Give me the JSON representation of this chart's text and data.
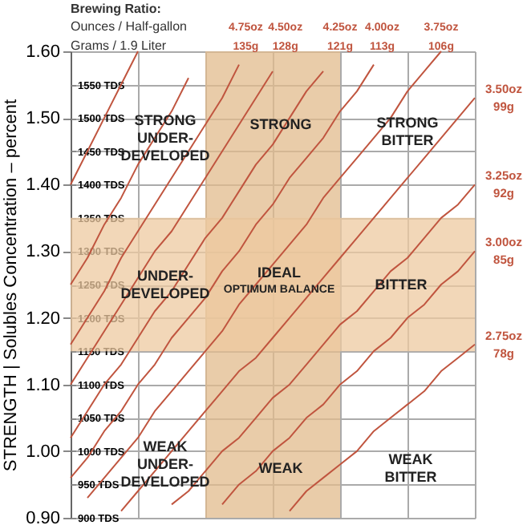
{
  "chart_data": {
    "type": "line",
    "ylabel": "STRENGTH | Solubles Concentration – percent",
    "annotations": [
      "Brewing Ratio:",
      "Ounces / Half-gallon",
      "Grams / 1.9 Liter",
      "STRONG UNDER-DEVELOPED",
      "STRONG",
      "STRONG BITTER",
      "UNDER-DEVELOPED",
      "IDEAL",
      "OPTIMUM BALANCE",
      "BITTER",
      "WEAK UNDER-DEVELOPED",
      "WEAK",
      "WEAK BITTER"
    ],
    "categories": [
      null,
      null,
      null,
      null,
      null,
      null,
      null,
      null,
      null,
      null,
      null,
      null,
      null,
      null,
      null,
      null,
      null,
      null,
      null,
      null,
      null,
      null,
      null,
      null,
      null
    ],
    "series": [
      {
        "color": "#c0553f",
        "values": [
          1.4,
          1.45,
          1.5,
          1.55,
          1.6,
          null,
          null,
          null,
          null,
          null,
          null,
          null,
          null,
          null,
          null,
          null,
          null,
          null,
          null,
          null,
          null,
          null,
          null,
          null,
          null
        ]
      },
      {
        "color": "#c0553f",
        "values": [
          1.25,
          1.29,
          1.34,
          1.38,
          1.43,
          1.47,
          1.51,
          1.56,
          null,
          null,
          null,
          null,
          null,
          null,
          null,
          null,
          null,
          null,
          null,
          null,
          null,
          null,
          null,
          null,
          null
        ]
      },
      {
        "name": "4.75oz 135g",
        "color": "#c0553f",
        "values": [
          1.16,
          1.2,
          1.24,
          1.29,
          1.33,
          1.37,
          1.41,
          1.45,
          1.49,
          1.53,
          1.58,
          null,
          null,
          null,
          null,
          null,
          null,
          null,
          null,
          null,
          null,
          null,
          null,
          null,
          null
        ]
      },
      {
        "name": "4.50oz 128g",
        "color": "#c0553f",
        "values": [
          1.1,
          1.14,
          1.18,
          1.22,
          1.26,
          1.3,
          1.33,
          1.37,
          1.41,
          1.45,
          1.49,
          1.53,
          1.57,
          null,
          null,
          null,
          null,
          null,
          null,
          null,
          null,
          null,
          null,
          null,
          null
        ]
      },
      {
        "name": "4.25oz 121g",
        "color": "#c0553f",
        "values": [
          1.02,
          1.06,
          1.1,
          1.13,
          1.17,
          1.21,
          1.24,
          1.28,
          1.32,
          1.35,
          1.39,
          1.43,
          1.46,
          1.5,
          1.54,
          1.57,
          null,
          null,
          null,
          null,
          null,
          null,
          null,
          null,
          null
        ]
      },
      {
        "name": "4.00oz 113g",
        "color": "#c0553f",
        "values": [
          0.96,
          0.99,
          1.03,
          1.06,
          1.1,
          1.13,
          1.17,
          1.2,
          1.23,
          1.27,
          1.3,
          1.34,
          1.37,
          1.41,
          1.44,
          1.47,
          1.51,
          1.54,
          1.58,
          null,
          null,
          null,
          null,
          null,
          null
        ]
      },
      {
        "name": "3.75oz 106g",
        "color": "#c0553f",
        "values": [
          null,
          0.93,
          0.96,
          0.99,
          1.02,
          1.06,
          1.09,
          1.12,
          1.15,
          1.18,
          1.22,
          1.25,
          1.28,
          1.31,
          1.34,
          1.38,
          1.41,
          1.44,
          1.47,
          1.5,
          1.54,
          1.57,
          1.6,
          null,
          null
        ]
      },
      {
        "name": "3.50oz 99g",
        "color": "#c0553f",
        "values": [
          null,
          null,
          null,
          0.91,
          0.94,
          0.97,
          1.0,
          1.03,
          1.06,
          1.09,
          1.12,
          1.14,
          1.17,
          1.2,
          1.23,
          1.26,
          1.29,
          1.32,
          1.35,
          1.38,
          1.41,
          1.44,
          1.47,
          1.5,
          1.53
        ]
      },
      {
        "name": "3.25oz 92g",
        "color": "#c0553f",
        "values": [
          null,
          null,
          null,
          null,
          null,
          null,
          0.92,
          0.94,
          0.97,
          1.0,
          1.02,
          1.05,
          1.08,
          1.1,
          1.13,
          1.16,
          1.19,
          1.21,
          1.24,
          1.27,
          1.29,
          1.32,
          1.35,
          1.37,
          1.4
        ]
      },
      {
        "name": "3.00oz 85g",
        "color": "#c0553f",
        "values": [
          null,
          null,
          null,
          null,
          null,
          null,
          null,
          null,
          null,
          0.92,
          0.95,
          0.97,
          1.0,
          1.02,
          1.05,
          1.07,
          1.1,
          1.12,
          1.15,
          1.17,
          1.2,
          1.22,
          1.25,
          1.27,
          1.3
        ]
      },
      {
        "name": "2.75oz 78g",
        "color": "#c0553f",
        "values": [
          null,
          null,
          null,
          null,
          null,
          null,
          null,
          null,
          null,
          null,
          null,
          null,
          null,
          0.91,
          0.94,
          0.96,
          0.98,
          1.0,
          1.03,
          1.05,
          1.07,
          1.09,
          1.12,
          1.14,
          1.16
        ]
      }
    ],
    "ylim": [
      0.9,
      1.6
    ],
    "yticks": [
      {
        "value": 0.9,
        "label": "0.90"
      },
      {
        "value": 1.0,
        "label": "1.00"
      },
      {
        "value": 1.1,
        "label": "1.10"
      },
      {
        "value": 1.2,
        "label": "1.20"
      },
      {
        "value": 1.3,
        "label": "1.30"
      },
      {
        "value": 1.4,
        "label": "1.40"
      },
      {
        "value": 1.5,
        "label": "1.50"
      },
      {
        "value": 1.6,
        "label": "1.60"
      }
    ],
    "y2lim": [
      900,
      1600
    ],
    "y2ticks": [
      {
        "value": 900,
        "label": "900 TDS"
      },
      {
        "value": 950,
        "label": "950 TDS"
      },
      {
        "value": 1000,
        "label": "1000 TDS"
      },
      {
        "value": 1050,
        "label": "1050 TDS"
      },
      {
        "value": 1100,
        "label": "1100 TDS"
      },
      {
        "value": 1150,
        "label": "1150 TDS"
      },
      {
        "value": 1200,
        "label": "1200 TDS"
      },
      {
        "value": 1250,
        "label": "1250 TDS"
      },
      {
        "value": 1300,
        "label": "1300 TDS"
      },
      {
        "value": 1350,
        "label": "1350 TDS"
      },
      {
        "value": 1400,
        "label": "1400 TDS"
      },
      {
        "value": 1450,
        "label": "1450 TDS"
      },
      {
        "value": 1500,
        "label": "1500 TDS"
      },
      {
        "value": 1550,
        "label": "1550 TDS"
      }
    ],
    "bands": [
      {
        "axis": "y",
        "from": 1.15,
        "to": 1.35,
        "color": "#eec9a0"
      }
    ],
    "grid": true,
    "tick_labels": "y"
  }
}
